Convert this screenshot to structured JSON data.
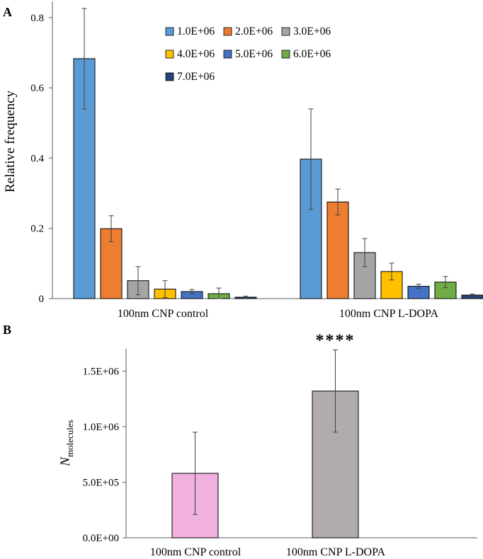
{
  "chart_data": [
    {
      "panel_label": "A",
      "type": "bar",
      "ylabel": "Relative frequency",
      "ylim": [
        0,
        0.85
      ],
      "yticks": [
        0,
        0.2,
        0.4,
        0.6,
        0.8
      ],
      "ytick_labels": [
        "0",
        "0.2",
        "0.4",
        "0.6",
        "0.8"
      ],
      "categories": [
        "100nm CNP control",
        "100nm CNP L-DOPA"
      ],
      "legend_position": "top-right",
      "series": [
        {
          "name": "1.0E+06",
          "color": "#5b9bd5",
          "values": [
            0.683,
            0.397
          ],
          "errors": [
            0.143,
            0.143
          ]
        },
        {
          "name": "2.0E+06",
          "color": "#ed7d31",
          "values": [
            0.199,
            0.275
          ],
          "errors": [
            0.037,
            0.037
          ]
        },
        {
          "name": "3.0E+06",
          "color": "#a5a5a5",
          "values": [
            0.051,
            0.131
          ],
          "errors": [
            0.04,
            0.04
          ]
        },
        {
          "name": "4.0E+06",
          "color": "#ffc000",
          "values": [
            0.027,
            0.077
          ],
          "errors": [
            0.024,
            0.024
          ]
        },
        {
          "name": "5.0E+06",
          "color": "#4472c4",
          "values": [
            0.02,
            0.035
          ],
          "errors": [
            0.006,
            0.006
          ]
        },
        {
          "name": "6.0E+06",
          "color": "#70ad47",
          "values": [
            0.014,
            0.047
          ],
          "errors": [
            0.016,
            0.016
          ]
        },
        {
          "name": "7.0E+06",
          "color": "#264478",
          "values": [
            0.004,
            0.01
          ],
          "errors": [
            0.003,
            0.003
          ]
        }
      ]
    },
    {
      "panel_label": "B",
      "type": "bar",
      "ylabel_main": "N",
      "ylabel_sub": "molecules",
      "ylim": [
        0,
        1700000
      ],
      "yticks": [
        0,
        500000,
        1000000,
        1500000
      ],
      "ytick_labels": [
        "0.0E+00",
        "5.0E+05",
        "1.0E+06",
        "1.5E+06"
      ],
      "categories": [
        "100nm CNP control",
        "100nm CNP L-DOPA"
      ],
      "values": [
        580000,
        1320000
      ],
      "errors": [
        370000,
        370000
      ],
      "colors": [
        "#f0b0e0",
        "#b1acab"
      ],
      "annotations": [
        "",
        "****"
      ]
    }
  ]
}
